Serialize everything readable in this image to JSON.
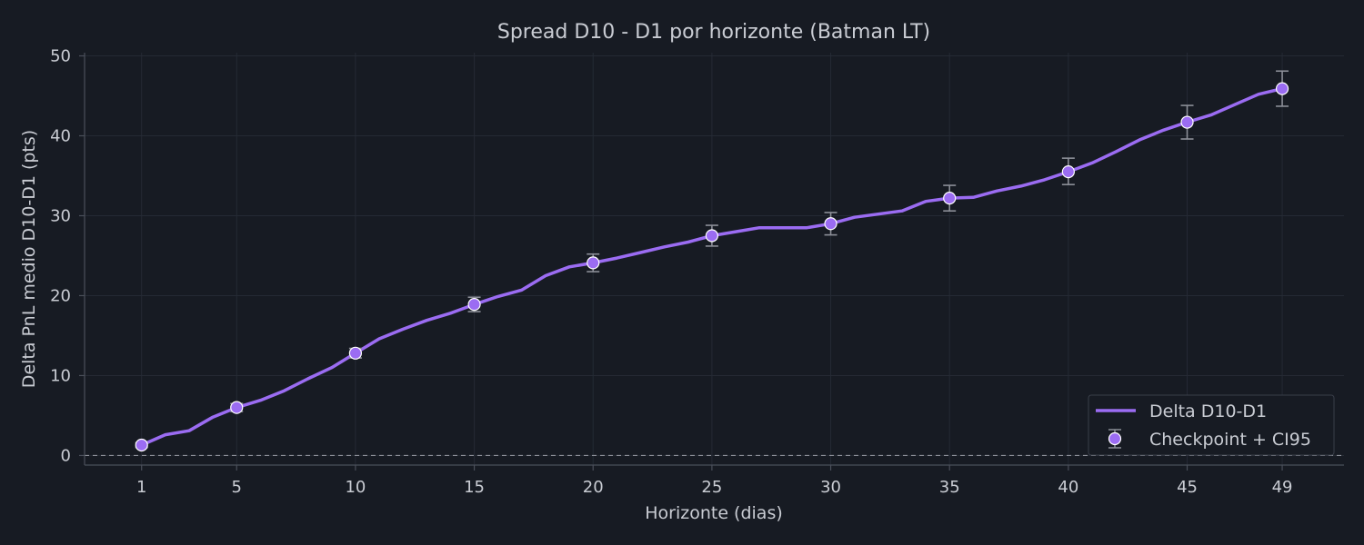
{
  "chart_data": {
    "type": "line",
    "title": "Spread D10 - D1 por horizonte (Batman LT)",
    "xlabel": "Horizonte (dias)",
    "ylabel": "Delta PnL medio D10-D1 (pts)",
    "xlim": [
      -1.4,
      51.6
    ],
    "ylim": [
      -1.2,
      50.4
    ],
    "x_ticks": [
      1,
      5,
      10,
      15,
      20,
      25,
      30,
      35,
      40,
      45,
      49
    ],
    "y_ticks": [
      0,
      10,
      20,
      30,
      40,
      50
    ],
    "grid": true,
    "reference_line_y": 0,
    "legend_position": "bottom-right",
    "colors": {
      "background": "#171b23",
      "line": "#9b6cf2",
      "marker_fill": "#9b6cf2",
      "marker_edge": "#ffffff",
      "errorbar": "#8c8f98",
      "grid": "#252a34",
      "axis": "#4a4f5a",
      "text": "#c9ccd3"
    },
    "series": [
      {
        "name": "Delta D10-D1",
        "x": [
          1,
          2,
          3,
          4,
          5,
          6,
          7,
          8,
          9,
          10,
          11,
          12,
          13,
          14,
          15,
          16,
          17,
          18,
          19,
          20,
          21,
          22,
          23,
          24,
          25,
          26,
          27,
          28,
          29,
          30,
          31,
          32,
          33,
          34,
          35,
          36,
          37,
          38,
          39,
          40,
          41,
          42,
          43,
          44,
          45,
          46,
          47,
          48,
          49
        ],
        "y": [
          1.3,
          2.6,
          3.1,
          4.8,
          6.0,
          6.9,
          8.1,
          9.6,
          11.0,
          12.8,
          14.6,
          15.8,
          16.9,
          17.8,
          18.9,
          19.9,
          20.7,
          22.5,
          23.6,
          24.1,
          24.7,
          25.4,
          26.1,
          26.7,
          27.5,
          28.0,
          28.5,
          28.5,
          28.5,
          29.0,
          29.8,
          30.2,
          30.6,
          31.8,
          32.2,
          32.3,
          33.1,
          33.7,
          34.5,
          35.5,
          36.6,
          38.0,
          39.5,
          40.7,
          41.7,
          42.6,
          43.9,
          45.2,
          45.9
        ]
      },
      {
        "name": "Checkpoint + CI95",
        "x": [
          1,
          5,
          10,
          15,
          20,
          25,
          30,
          35,
          40,
          45,
          49
        ],
        "y": [
          1.3,
          6.0,
          12.8,
          18.9,
          24.1,
          27.5,
          29.0,
          32.2,
          35.5,
          41.7,
          45.9
        ],
        "ci_low": [
          1.0,
          5.5,
          12.2,
          18.0,
          23.0,
          26.2,
          27.6,
          30.6,
          33.9,
          39.6,
          43.7
        ],
        "ci_high": [
          1.6,
          6.5,
          13.4,
          19.8,
          25.2,
          28.8,
          30.4,
          33.8,
          37.2,
          43.8,
          48.1
        ]
      }
    ]
  }
}
